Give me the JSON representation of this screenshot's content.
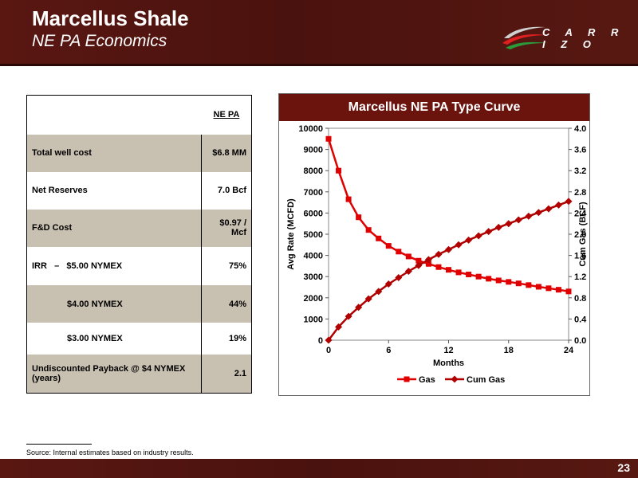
{
  "header": {
    "title": "Marcellus Shale",
    "subtitle": "NE PA Economics"
  },
  "logo": {
    "text": "C A R R I Z O"
  },
  "table": {
    "column_header": "NE PA",
    "rows": [
      {
        "label": "Total well cost",
        "value": "$6.8 MM"
      },
      {
        "label": "Net Reserves",
        "value": "7.0 Bcf"
      },
      {
        "label": "F&D Cost",
        "value": "$0.97 / Mcf"
      },
      {
        "label": "IRR   –   $5.00 NYMEX",
        "value": "75%"
      },
      {
        "label": "$4.00 NYMEX",
        "value": "44%"
      },
      {
        "label": "$3.00 NYMEX",
        "value": "19%"
      },
      {
        "label": "Undiscounted Payback @ $4 NYMEX (years)",
        "value": "2.1"
      }
    ]
  },
  "chart_data": {
    "type": "line",
    "title": "Marcellus NE PA Type Curve",
    "xlabel": "Months",
    "ylabel": "Avg Rate (MCFD)",
    "y2label": "Cum Gas (BCF)",
    "xlim": [
      0,
      24
    ],
    "ylim": [
      0,
      10000
    ],
    "y2lim": [
      0,
      4.0
    ],
    "x_ticks": [
      "0",
      "6",
      "12",
      "18",
      "24"
    ],
    "y_ticks": [
      "0",
      "1000",
      "2000",
      "3000",
      "4000",
      "5000",
      "6000",
      "7000",
      "8000",
      "9000",
      "10000"
    ],
    "y2_ticks": [
      "0.0",
      "0.4",
      "0.8",
      "1.2",
      "1.6",
      "2.0",
      "2.4",
      "2.8",
      "3.2",
      "3.6",
      "4.0"
    ],
    "x": [
      0,
      1,
      2,
      3,
      4,
      5,
      6,
      7,
      8,
      9,
      10,
      11,
      12,
      13,
      14,
      15,
      16,
      17,
      18,
      19,
      20,
      21,
      22,
      23,
      24
    ],
    "legend_position": "bottom",
    "series": [
      {
        "name": "Gas",
        "axis": "left",
        "color": "#e00000",
        "marker": "square",
        "values": [
          9500,
          8000,
          6650,
          5800,
          5200,
          4800,
          4450,
          4180,
          3950,
          3750,
          3600,
          3450,
          3320,
          3200,
          3100,
          3000,
          2900,
          2820,
          2750,
          2680,
          2600,
          2520,
          2450,
          2380,
          2300
        ]
      },
      {
        "name": "Cum Gas",
        "axis": "right",
        "color": "#b00000",
        "marker": "diamond",
        "values": [
          0,
          0.25,
          0.45,
          0.62,
          0.78,
          0.92,
          1.06,
          1.18,
          1.3,
          1.41,
          1.52,
          1.62,
          1.71,
          1.8,
          1.89,
          1.97,
          2.05,
          2.13,
          2.2,
          2.27,
          2.34,
          2.41,
          2.48,
          2.55,
          2.62
        ]
      }
    ]
  },
  "footnote": "Source: Internal estimates based on industry results.",
  "page_number": "23"
}
